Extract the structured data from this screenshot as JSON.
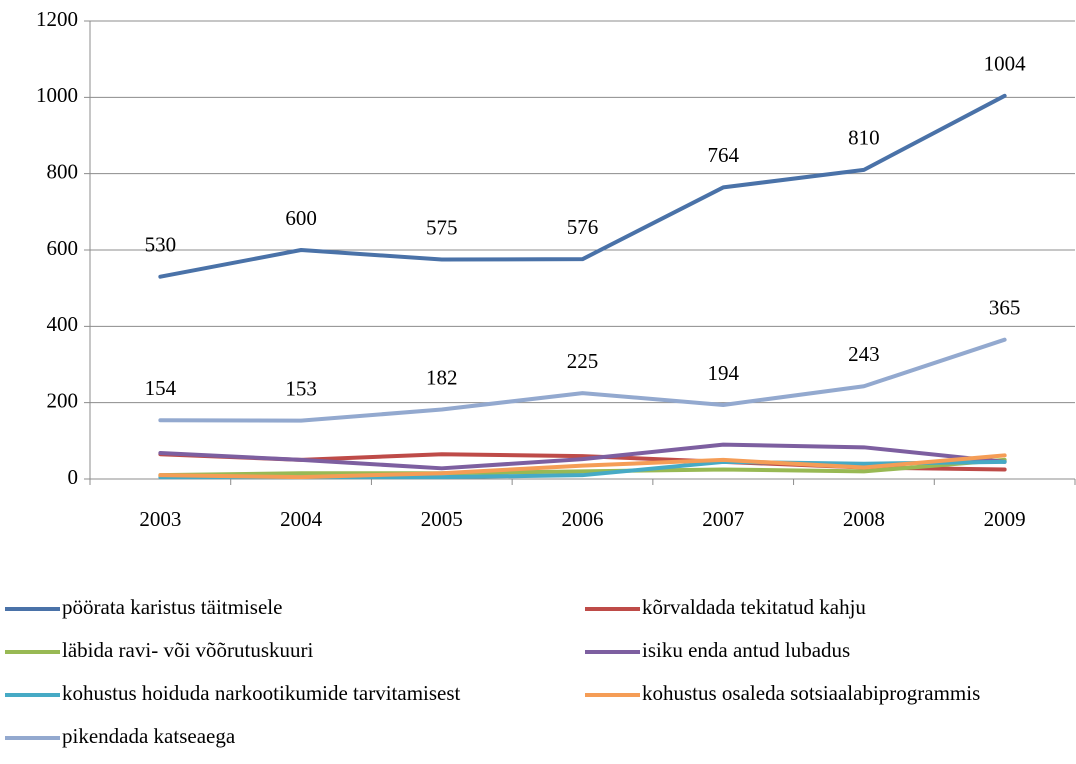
{
  "chart_data": {
    "type": "line",
    "categories": [
      "2003",
      "2004",
      "2005",
      "2006",
      "2007",
      "2008",
      "2009"
    ],
    "series": [
      {
        "name": "pöörata karistus täitmisele",
        "color": "#4a72a8",
        "values": [
          530,
          600,
          575,
          576,
          764,
          810,
          1004
        ],
        "data_labels": true
      },
      {
        "name": "kõrvaldada tekitatud kahju",
        "color": "#be4b48",
        "values": [
          65,
          50,
          65,
          60,
          45,
          30,
          25
        ],
        "data_labels": false
      },
      {
        "name": "läbida ravi- või võõrutuskuuri",
        "color": "#98b954",
        "values": [
          10,
          15,
          15,
          20,
          25,
          20,
          50
        ],
        "data_labels": false
      },
      {
        "name": "isiku enda antud lubadus",
        "color": "#7d5fa0",
        "values": [
          68,
          50,
          28,
          52,
          90,
          83,
          45
        ],
        "data_labels": false
      },
      {
        "name": "kohustus hoiduda narkootikumide tarvitamisest",
        "color": "#46aac5",
        "values": [
          5,
          5,
          5,
          10,
          45,
          40,
          45
        ],
        "data_labels": false
      },
      {
        "name": "kohustus osaleda sotsiaalabiprogrammis",
        "color": "#f59d56",
        "values": [
          10,
          5,
          15,
          35,
          50,
          30,
          62
        ],
        "data_labels": false
      },
      {
        "name": "pikendada katseaega",
        "color": "#93a9cf",
        "values": [
          154,
          153,
          182,
          225,
          194,
          243,
          365
        ],
        "data_labels": true
      }
    ],
    "ylim": [
      0,
      1200
    ],
    "yticks": [
      0,
      200,
      400,
      600,
      800,
      1000,
      1200
    ],
    "grid": true,
    "legend": "bottom"
  }
}
